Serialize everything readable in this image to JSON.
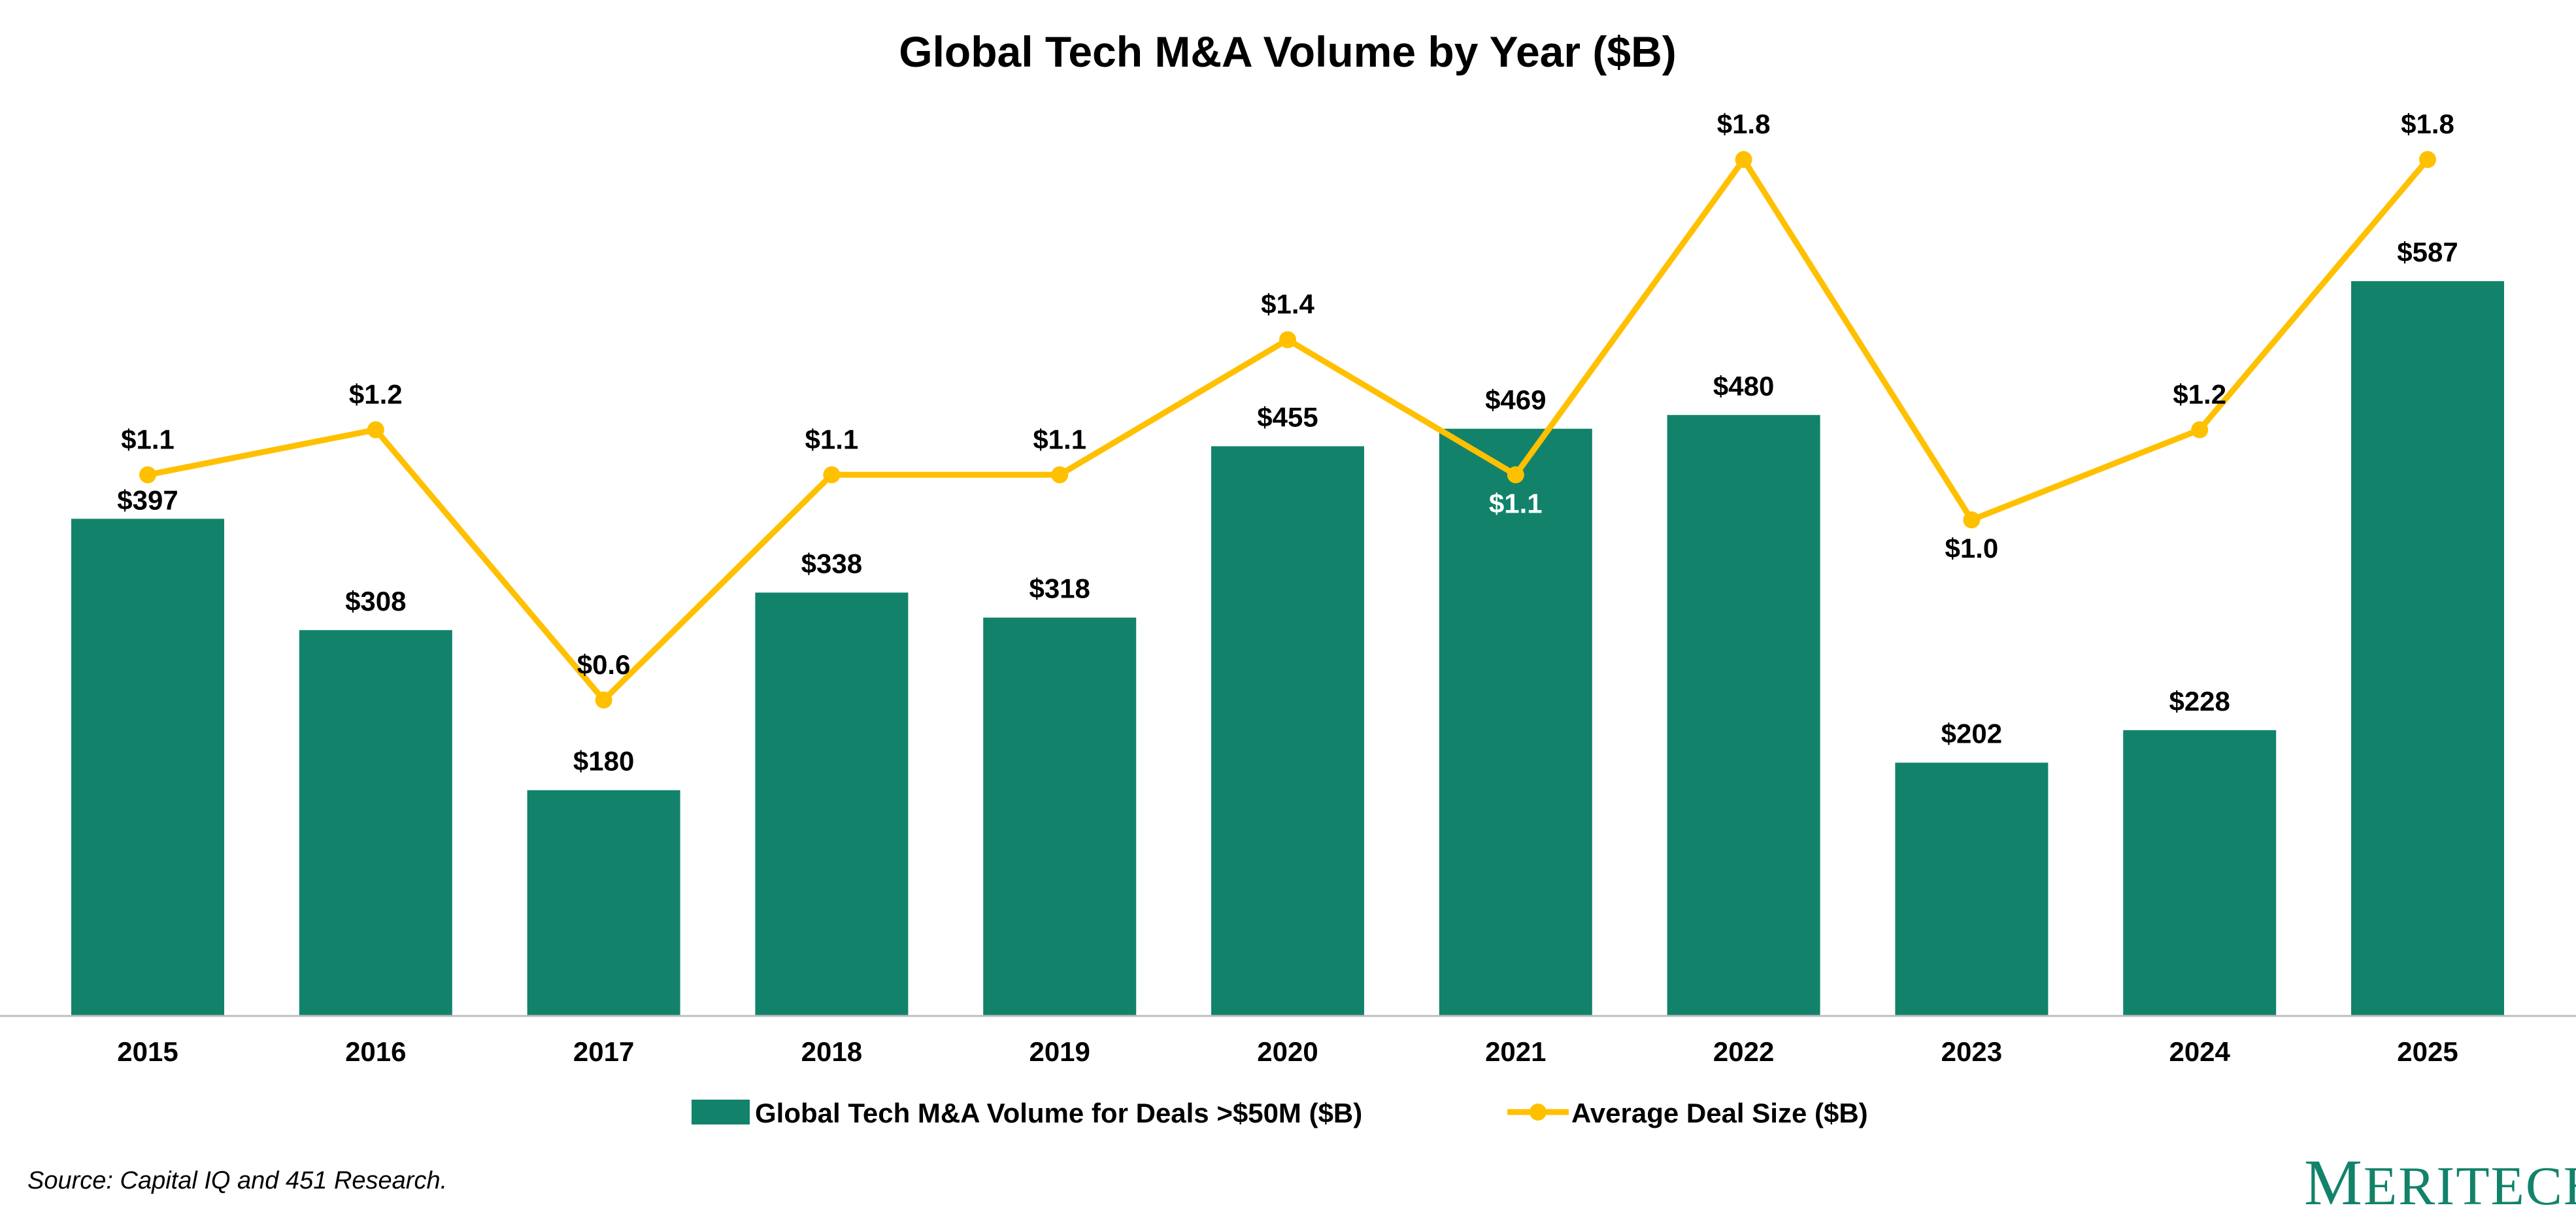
{
  "chart_data": {
    "type": "bar+line",
    "title": "Global Tech M&A Volume by Year ($B)",
    "categories": [
      "2015",
      "2016",
      "2017",
      "2018",
      "2019",
      "2020",
      "2021",
      "2022",
      "2023",
      "2024",
      "2025"
    ],
    "series": [
      {
        "name": "Global Tech M&A Volume for Deals >$50M ($B)",
        "type": "bar",
        "color": "#12836a",
        "values": [
          397,
          308,
          180,
          338,
          318,
          455,
          469,
          480,
          202,
          228,
          587
        ],
        "labels": [
          "$397",
          "$308",
          "$180",
          "$338",
          "$318",
          "$455",
          "$469",
          "$480",
          "$202",
          "$228",
          "$587"
        ]
      },
      {
        "name": "Average Deal Size ($B)",
        "type": "line",
        "color": "#ffc000",
        "values": [
          1.1,
          1.2,
          0.6,
          1.1,
          1.1,
          1.4,
          1.1,
          1.8,
          1.0,
          1.2,
          1.8
        ],
        "labels": [
          "$1.1",
          "$1.2",
          "$0.6",
          "$1.1",
          "$1.1",
          "$1.4",
          "$1.1",
          "$1.8",
          "$1.0",
          "$1.2",
          "$1.8"
        ]
      }
    ],
    "xlabel": "",
    "ylabel": "",
    "grid": false,
    "legend": "bottom-center"
  },
  "footer": {
    "source": "Source: Capital IQ and 451 Research.",
    "logo": "MERITECH"
  }
}
